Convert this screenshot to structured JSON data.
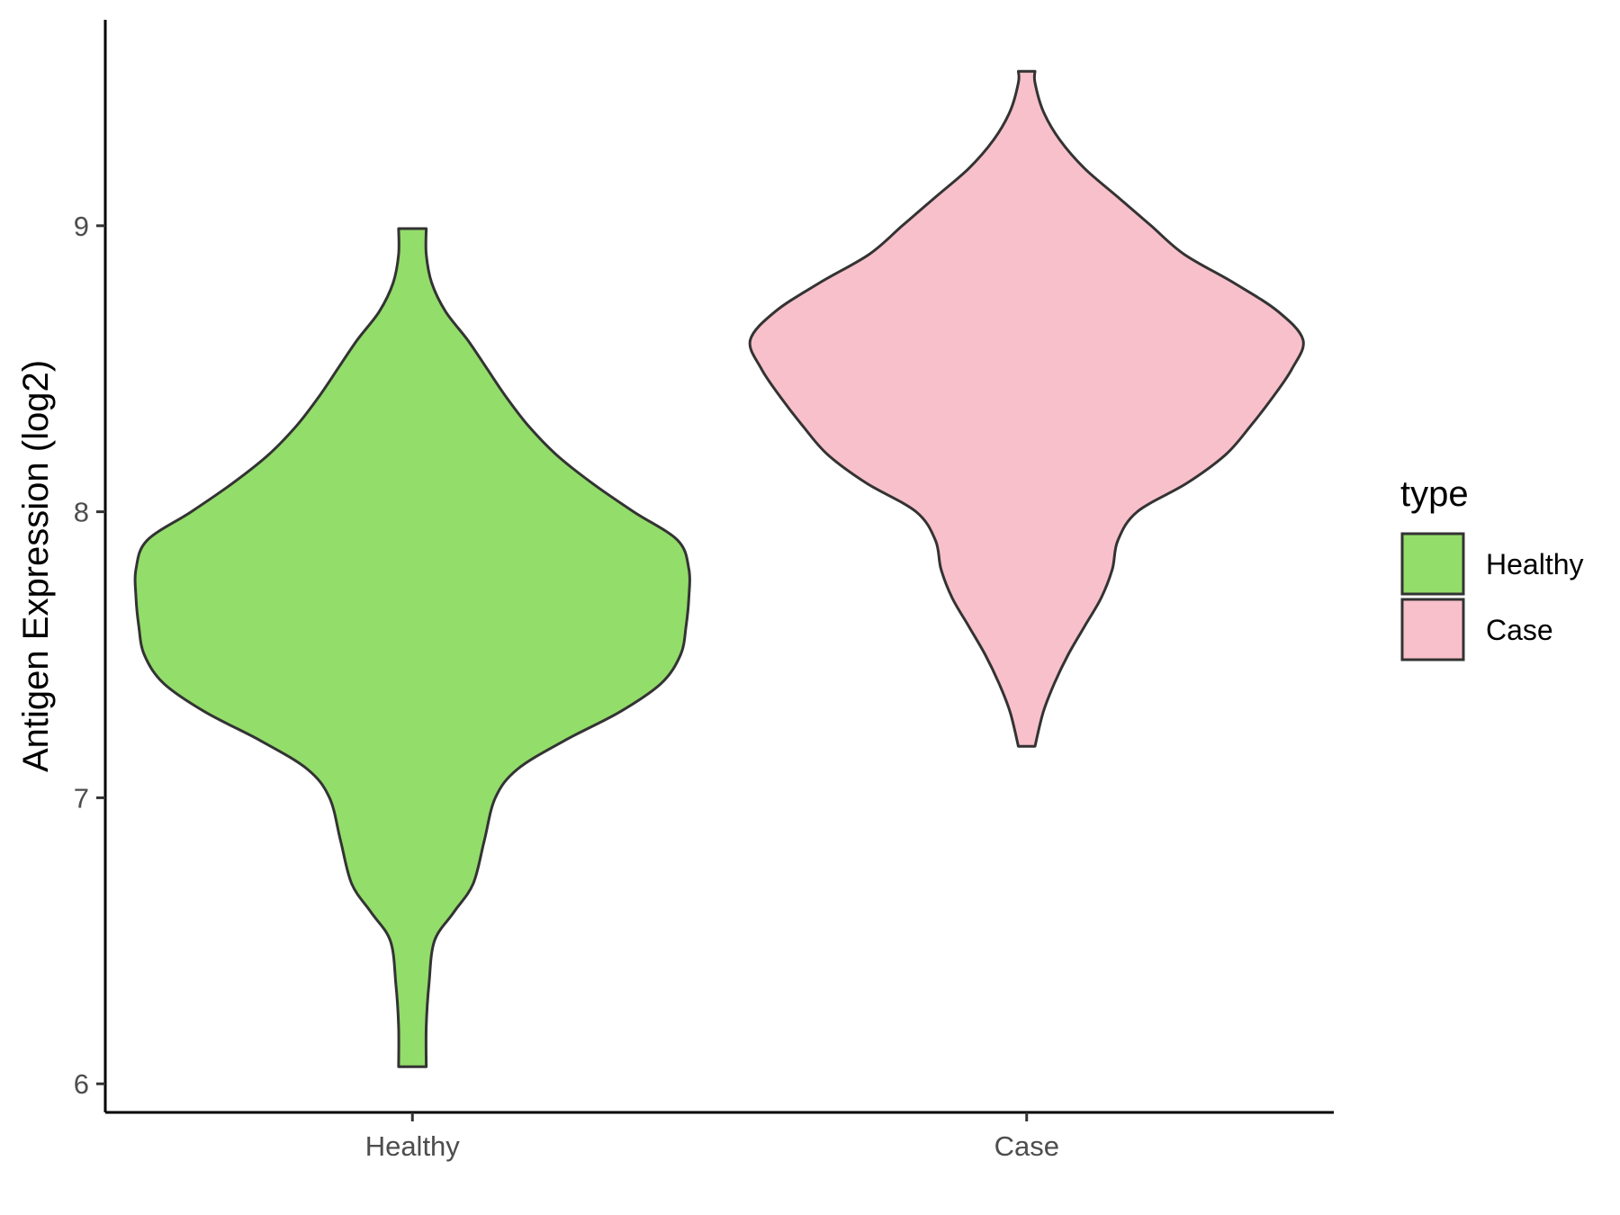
{
  "chart_data": {
    "type": "violin",
    "ylabel": "Antigen Expression (log2)",
    "xlabel": "",
    "ylim": [
      5.9,
      9.72
    ],
    "yticks": [
      6,
      7,
      8,
      9
    ],
    "categories": [
      "Healthy",
      "Case"
    ],
    "legend": {
      "title": "type",
      "position": "right",
      "entries": [
        {
          "label": "Healthy",
          "color": "#93DD6A"
        },
        {
          "label": "Case",
          "color": "#F8C0CB"
        }
      ]
    },
    "grid": false,
    "series": [
      {
        "name": "Healthy",
        "color": "#93DD6A",
        "min": 6.06,
        "max": 8.99,
        "density": [
          [
            6.06,
            0.05
          ],
          [
            6.2,
            0.05
          ],
          [
            6.35,
            0.06
          ],
          [
            6.5,
            0.08
          ],
          [
            6.6,
            0.15
          ],
          [
            6.7,
            0.22
          ],
          [
            6.85,
            0.26
          ],
          [
            7.0,
            0.3
          ],
          [
            7.1,
            0.38
          ],
          [
            7.2,
            0.55
          ],
          [
            7.3,
            0.75
          ],
          [
            7.4,
            0.9
          ],
          [
            7.5,
            0.97
          ],
          [
            7.6,
            0.99
          ],
          [
            7.7,
            1.0
          ],
          [
            7.8,
            1.0
          ],
          [
            7.9,
            0.96
          ],
          [
            8.0,
            0.8
          ],
          [
            8.1,
            0.65
          ],
          [
            8.2,
            0.52
          ],
          [
            8.3,
            0.42
          ],
          [
            8.4,
            0.34
          ],
          [
            8.5,
            0.27
          ],
          [
            8.6,
            0.2
          ],
          [
            8.7,
            0.12
          ],
          [
            8.8,
            0.07
          ],
          [
            8.9,
            0.05
          ],
          [
            8.99,
            0.05
          ]
        ]
      },
      {
        "name": "Case",
        "color": "#F8C0CB",
        "min": 7.18,
        "max": 9.54,
        "density": [
          [
            7.18,
            0.03
          ],
          [
            7.3,
            0.06
          ],
          [
            7.4,
            0.1
          ],
          [
            7.5,
            0.15
          ],
          [
            7.6,
            0.21
          ],
          [
            7.7,
            0.27
          ],
          [
            7.8,
            0.31
          ],
          [
            7.9,
            0.33
          ],
          [
            8.0,
            0.4
          ],
          [
            8.1,
            0.58
          ],
          [
            8.2,
            0.72
          ],
          [
            8.3,
            0.81
          ],
          [
            8.4,
            0.89
          ],
          [
            8.5,
            0.96
          ],
          [
            8.6,
            1.0
          ],
          [
            8.7,
            0.91
          ],
          [
            8.8,
            0.75
          ],
          [
            8.9,
            0.57
          ],
          [
            9.0,
            0.45
          ],
          [
            9.1,
            0.33
          ],
          [
            9.2,
            0.21
          ],
          [
            9.3,
            0.12
          ],
          [
            9.4,
            0.06
          ],
          [
            9.5,
            0.03
          ],
          [
            9.54,
            0.03
          ]
        ]
      }
    ]
  }
}
